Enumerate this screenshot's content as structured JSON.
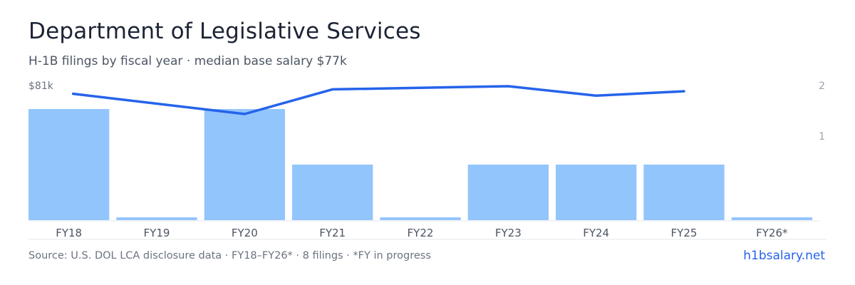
{
  "header": {
    "title": "Department of Legislative Services",
    "subtitle": "H-1B filings by fiscal year · median base salary $77k"
  },
  "chart_data": {
    "type": "bar",
    "categories": [
      "FY18",
      "FY19",
      "FY20",
      "FY21",
      "FY22",
      "FY23",
      "FY24",
      "FY25",
      "FY26*"
    ],
    "series": [
      {
        "type": "bar",
        "axis": "right",
        "values": [
          2,
          0,
          2,
          1,
          0,
          1,
          1,
          1,
          0
        ],
        "color": "#93c5fd"
      },
      {
        "type": "line",
        "axis": "left",
        "values": [
          79.0,
          null,
          75.8,
          79.7,
          null,
          80.2,
          78.7,
          79.4,
          null
        ],
        "color": "#2563eb"
      }
    ],
    "left_axis": {
      "ticks": [
        {
          "value": 81,
          "label": "$81k"
        }
      ],
      "range": [
        0,
        81
      ]
    },
    "right_axis": {
      "ticks": [
        {
          "value": 2,
          "label": "2"
        },
        {
          "value": 1,
          "label": "1"
        }
      ],
      "range": [
        0,
        2
      ]
    },
    "line_x_positions_fraction_note": null
  },
  "footer": {
    "source": "Source: U.S. DOL LCA disclosure data · FY18–FY26* · 8 filings · *FY in progress",
    "brand": "h1bsalary.net"
  },
  "colors": {
    "bar": "#93c5fd",
    "line": "#2563eb",
    "axis_text": "#6b7280",
    "baseline": "#e5e7eb",
    "title": "#1c2434",
    "brand": "#2563eb"
  }
}
